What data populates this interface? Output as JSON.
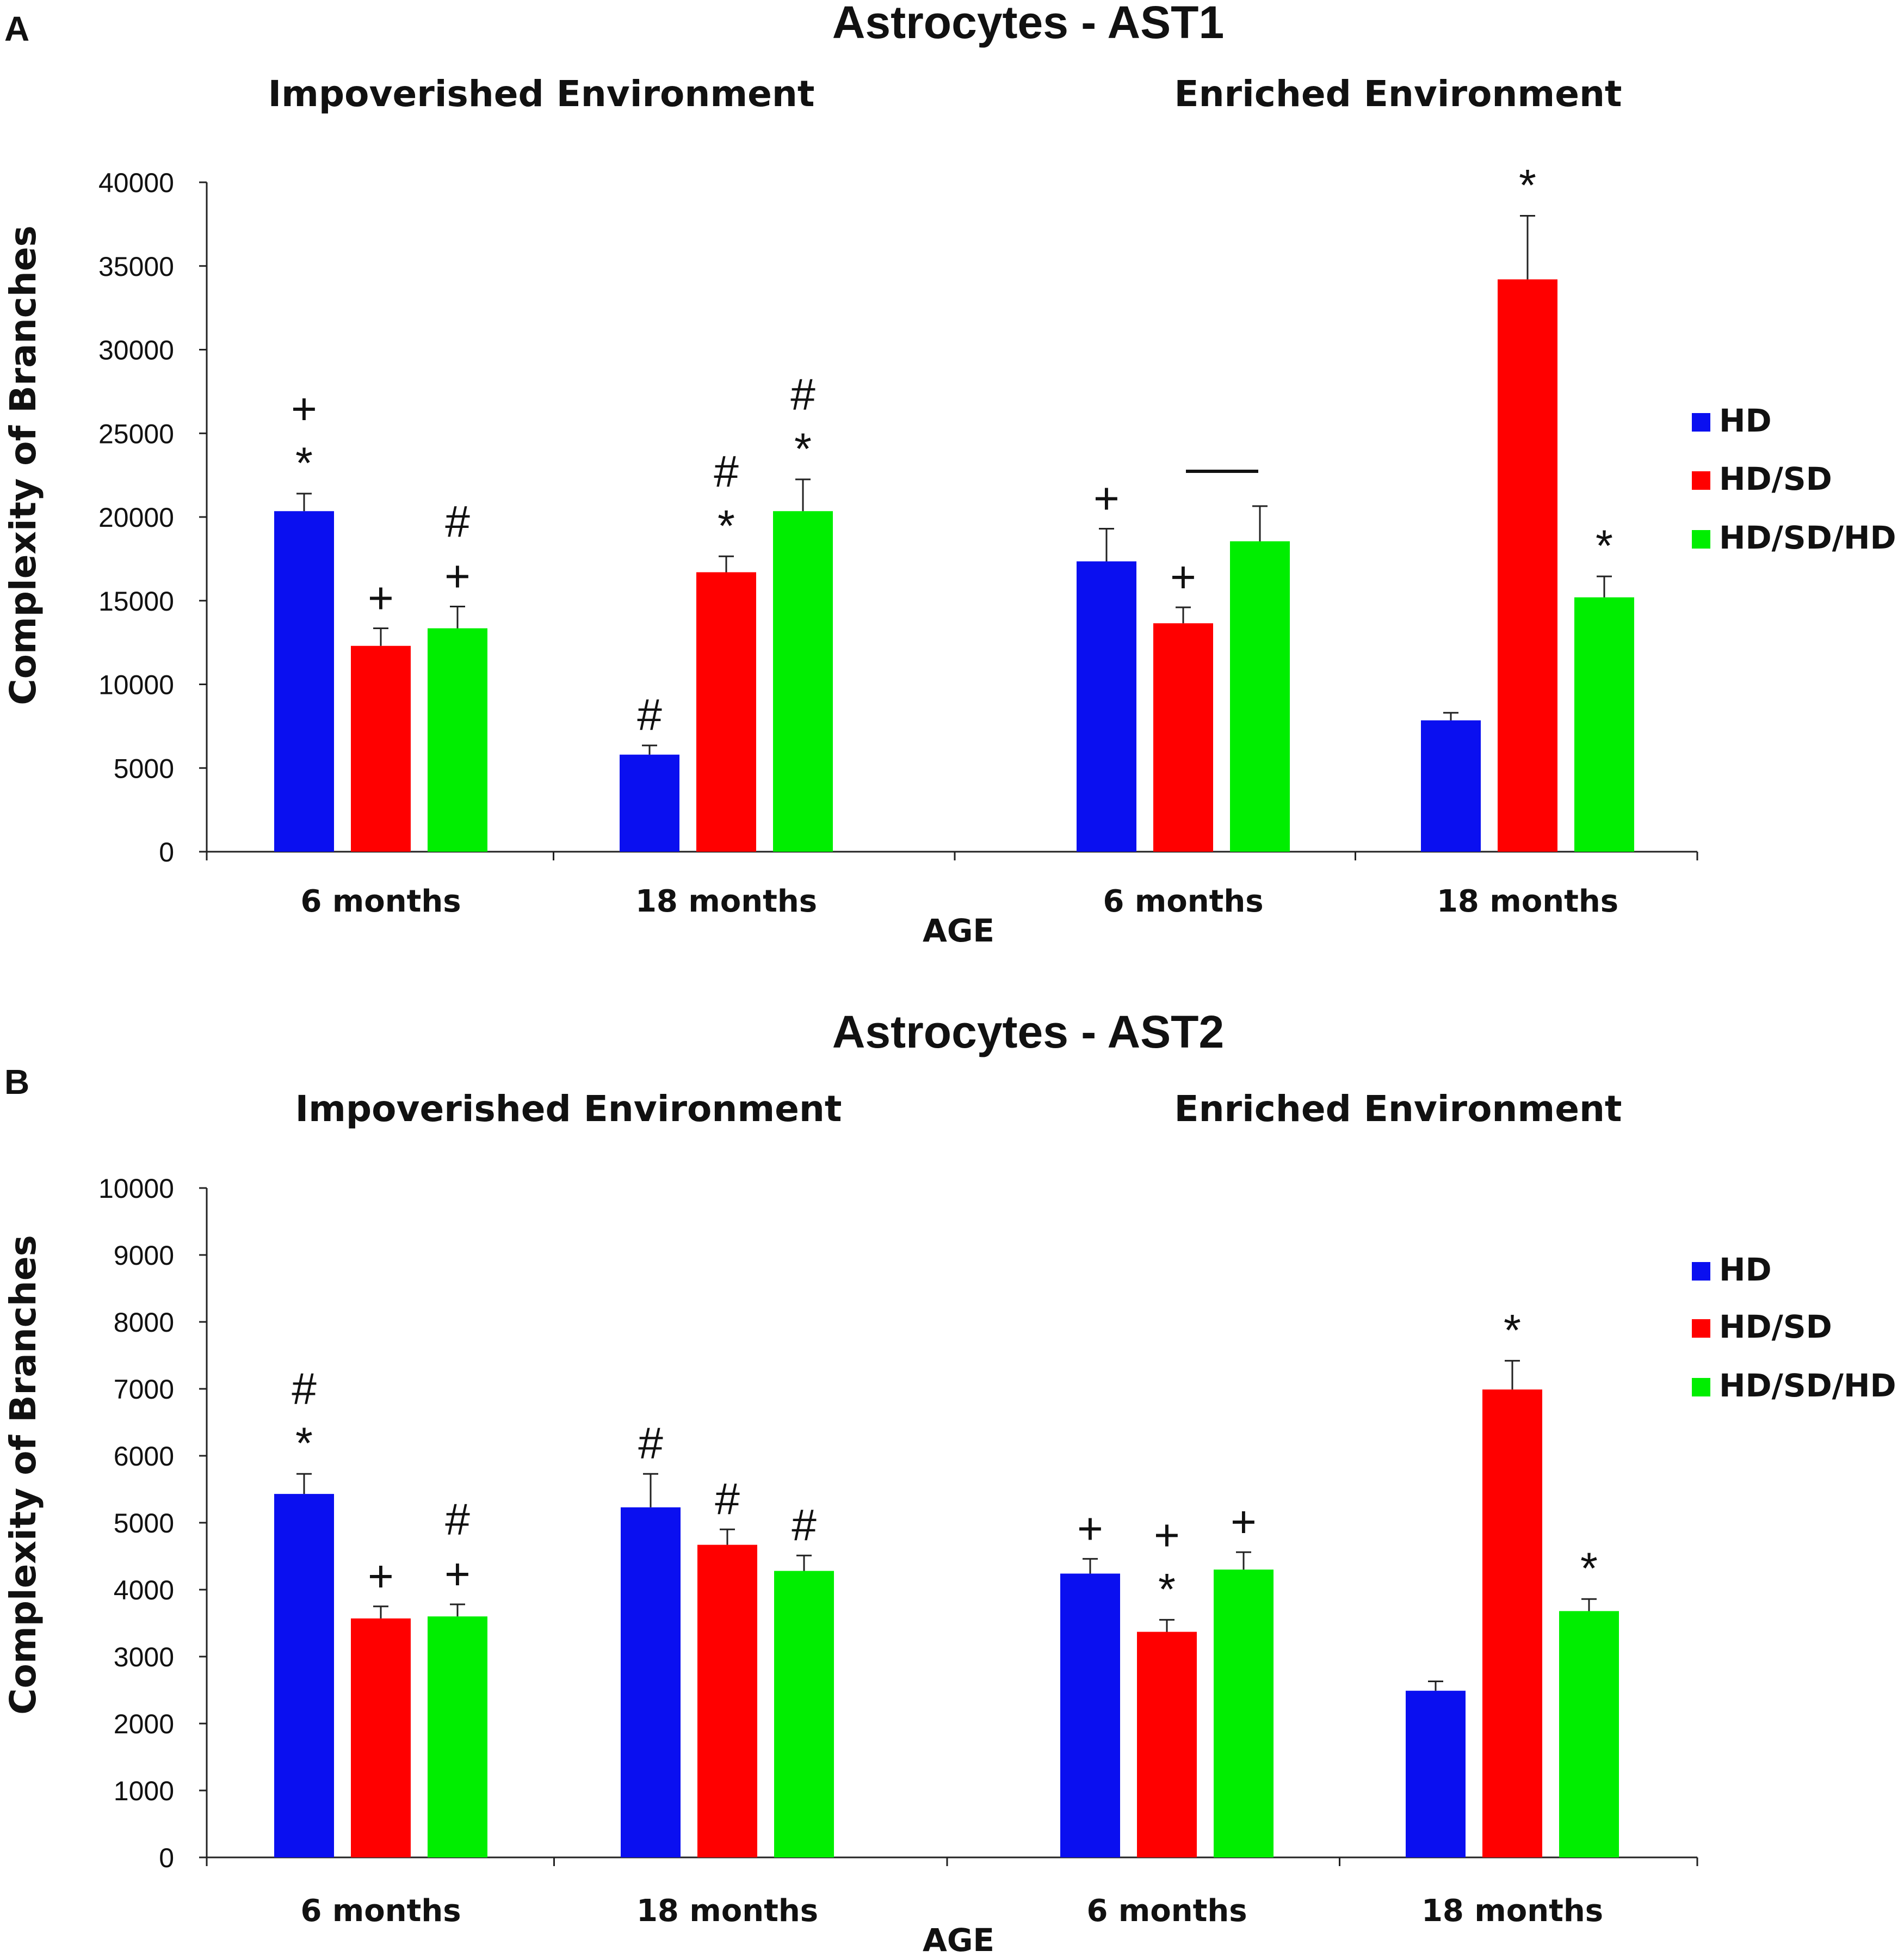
{
  "colors": {
    "HD": "#0a0ff0",
    "HD/SD": "#ff0000",
    "HD/SD/HD": "#00ee00",
    "axis": "#222222",
    "text": "#111111"
  },
  "chart_data": [
    {
      "type": "bar",
      "panel_letter": "A",
      "title": "Astrocytes - AST1",
      "group_titles": [
        "Impoverished Environment",
        "Enriched Environment"
      ],
      "ylabel": "Complexity of Branches",
      "xlabel": "AGE",
      "ylim": [
        0,
        40000
      ],
      "yticks": [
        0,
        5000,
        10000,
        15000,
        20000,
        25000,
        30000,
        35000,
        40000
      ],
      "ytick_labels": [
        "0",
        "5000",
        "10000",
        "15000",
        "20000",
        "25000",
        "30000",
        "35000",
        "40000"
      ],
      "categories": [
        "6 months",
        "18 months",
        "6 months",
        "18 months"
      ],
      "legend": [
        "HD",
        "HD/SD",
        "HD/SD/HD"
      ],
      "legend_position": "right",
      "series": [
        {
          "name": "HD",
          "values": [
            20350,
            5800,
            17350,
            7850
          ],
          "errors": [
            1050,
            550,
            1950,
            450
          ]
        },
        {
          "name": "HD/SD",
          "values": [
            12300,
            16700,
            13650,
            34200
          ],
          "errors": [
            1050,
            950,
            950,
            3800
          ]
        },
        {
          "name": "HD/SD/HD",
          "values": [
            13350,
            20350,
            18550,
            15200
          ],
          "errors": [
            1300,
            1900,
            2100,
            1250
          ]
        }
      ],
      "annotations": [
        {
          "category": 0,
          "series": "HD",
          "text": "+\n*"
        },
        {
          "category": 0,
          "series": "HD/SD",
          "text": "+"
        },
        {
          "category": 0,
          "series": "HD/SD/HD",
          "text": "#\n+"
        },
        {
          "category": 1,
          "series": "HD",
          "text": "#"
        },
        {
          "category": 1,
          "series": "HD/SD",
          "text": "#\n*"
        },
        {
          "category": 1,
          "series": "HD/SD/HD",
          "text": "#\n*"
        },
        {
          "category": 2,
          "series": "HD",
          "text": "+"
        },
        {
          "category": 2,
          "series": "HD/SD",
          "text": "+"
        },
        {
          "category": 3,
          "series": "HD/SD",
          "text": "*"
        },
        {
          "category": 3,
          "series": "HD/SD/HD",
          "text": "*"
        }
      ]
    },
    {
      "type": "bar",
      "panel_letter": "B",
      "title": "Astrocytes - AST2",
      "group_titles": [
        "Impoverished Environment",
        "Enriched Environment"
      ],
      "ylabel": "Complexity of Branches",
      "xlabel": "AGE",
      "ylim": [
        0,
        10000
      ],
      "yticks": [
        0,
        1000,
        2000,
        3000,
        4000,
        5000,
        6000,
        7000,
        8000,
        9000,
        10000
      ],
      "ytick_labels": [
        "0",
        "1000",
        "2000",
        "3000",
        "4000",
        "5000",
        "6000",
        "7000",
        "8000",
        "9000",
        "10000"
      ],
      "categories": [
        "6 months",
        "18 months",
        "6 months",
        "18 months"
      ],
      "legend": [
        "HD",
        "HD/SD",
        "HD/SD/HD"
      ],
      "legend_position": "right",
      "series": [
        {
          "name": "HD",
          "values": [
            5430,
            5230,
            4240,
            2490
          ],
          "errors": [
            300,
            500,
            220,
            140
          ]
        },
        {
          "name": "HD/SD",
          "values": [
            3570,
            4670,
            3370,
            6990
          ],
          "errors": [
            180,
            230,
            180,
            430
          ]
        },
        {
          "name": "HD/SD/HD",
          "values": [
            3600,
            4280,
            4300,
            3680
          ],
          "errors": [
            180,
            230,
            260,
            180
          ]
        }
      ],
      "annotations": [
        {
          "category": 0,
          "series": "HD",
          "text": "#\n*"
        },
        {
          "category": 0,
          "series": "HD/SD",
          "text": "+"
        },
        {
          "category": 0,
          "series": "HD/SD/HD",
          "text": "#\n+"
        },
        {
          "category": 1,
          "series": "HD",
          "text": "#"
        },
        {
          "category": 1,
          "series": "HD/SD",
          "text": "#"
        },
        {
          "category": 1,
          "series": "HD/SD/HD",
          "text": "#"
        },
        {
          "category": 2,
          "series": "HD",
          "text": "+"
        },
        {
          "category": 2,
          "series": "HD/SD",
          "text": "+\n*"
        },
        {
          "category": 2,
          "series": "HD/SD/HD",
          "text": "+"
        },
        {
          "category": 3,
          "series": "HD/SD",
          "text": "*"
        },
        {
          "category": 3,
          "series": "HD/SD/HD",
          "text": "*"
        }
      ]
    }
  ]
}
